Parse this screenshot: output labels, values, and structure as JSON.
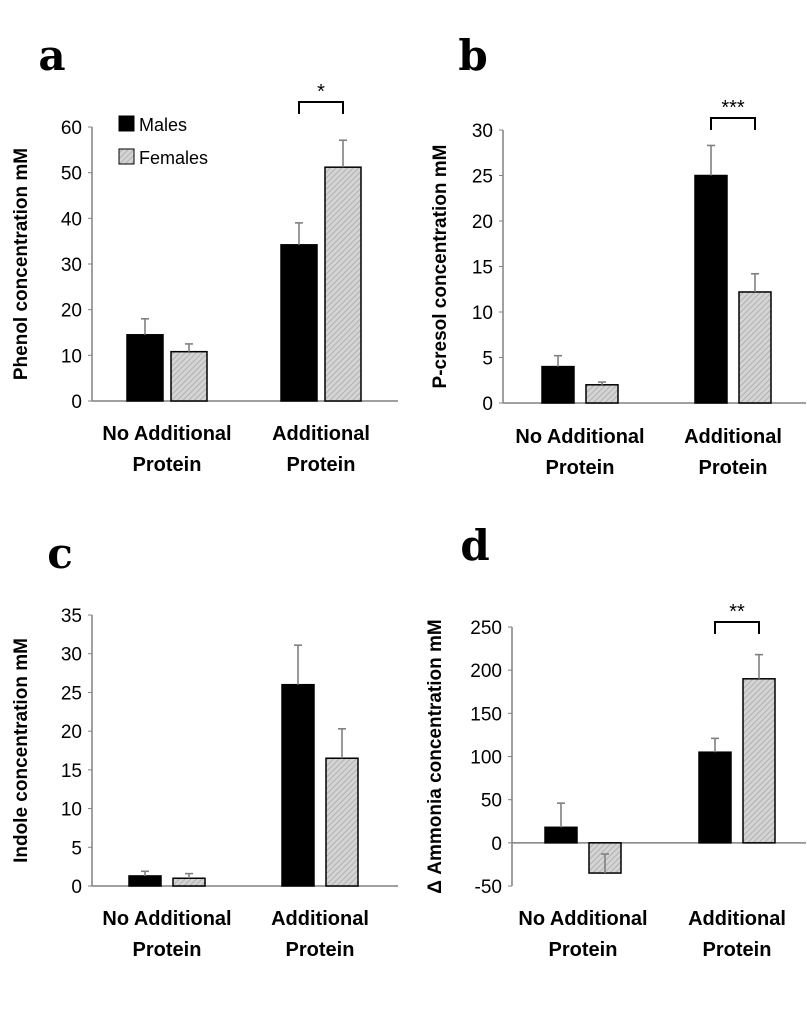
{
  "colors": {
    "males": "#000000",
    "females_fill": "#c8c8c8",
    "females_stroke": "#000000",
    "axis": "#808080",
    "error": "#808080"
  },
  "legend": {
    "males": "Males",
    "females": "Females"
  },
  "chart_data": [
    {
      "type": "bar",
      "panel": "a",
      "ylabel": "Phenol concentration mM",
      "ylim": [
        0,
        60
      ],
      "yticks": [
        0,
        10,
        20,
        30,
        40,
        50,
        60
      ],
      "categories": [
        "No Additional|Protein",
        "Additional|Protein"
      ],
      "series": [
        {
          "name": "Males",
          "values": [
            14.5,
            34.2
          ],
          "errors": [
            3.5,
            4.8
          ]
        },
        {
          "name": "Females",
          "values": [
            10.8,
            51.2
          ],
          "errors": [
            1.7,
            5.9
          ]
        }
      ],
      "significance": [
        {
          "category_index": 1,
          "label": "*"
        }
      ],
      "legend": "top-left"
    },
    {
      "type": "bar",
      "panel": "b",
      "ylabel": "P-cresol concentration mM",
      "ylim": [
        0,
        30
      ],
      "yticks": [
        0,
        5,
        10,
        15,
        20,
        25,
        30
      ],
      "categories": [
        "No Additional|Protein",
        "Additional|Protein"
      ],
      "series": [
        {
          "name": "Males",
          "values": [
            4.0,
            25.0
          ],
          "errors": [
            1.2,
            3.3
          ]
        },
        {
          "name": "Females",
          "values": [
            2.0,
            12.2
          ],
          "errors": [
            0.3,
            2.0
          ]
        }
      ],
      "significance": [
        {
          "category_index": 1,
          "label": "***"
        }
      ]
    },
    {
      "type": "bar",
      "panel": "c",
      "ylabel": "Indole concentration mM",
      "ylim": [
        0,
        35
      ],
      "yticks": [
        0,
        5,
        10,
        15,
        20,
        25,
        30,
        35
      ],
      "categories": [
        "No Additional|Protein",
        "Additional|Protein"
      ],
      "series": [
        {
          "name": "Males",
          "values": [
            1.3,
            26.0
          ],
          "errors": [
            0.6,
            5.1
          ]
        },
        {
          "name": "Females",
          "values": [
            1.0,
            16.5
          ],
          "errors": [
            0.6,
            3.8
          ]
        }
      ],
      "significance": []
    },
    {
      "type": "bar",
      "panel": "d",
      "ylabel": "Δ Ammonia concentration mM",
      "ylim": [
        -50,
        250
      ],
      "yticks": [
        -50,
        0,
        50,
        100,
        150,
        200,
        250
      ],
      "categories": [
        "No Additional|Protein",
        "Additional|Protein"
      ],
      "series": [
        {
          "name": "Males",
          "values": [
            18,
            105
          ],
          "errors": [
            28,
            16
          ]
        },
        {
          "name": "Females",
          "values": [
            -35,
            190
          ],
          "errors": [
            22,
            28
          ]
        }
      ],
      "significance": [
        {
          "category_index": 1,
          "label": "**"
        }
      ]
    }
  ]
}
